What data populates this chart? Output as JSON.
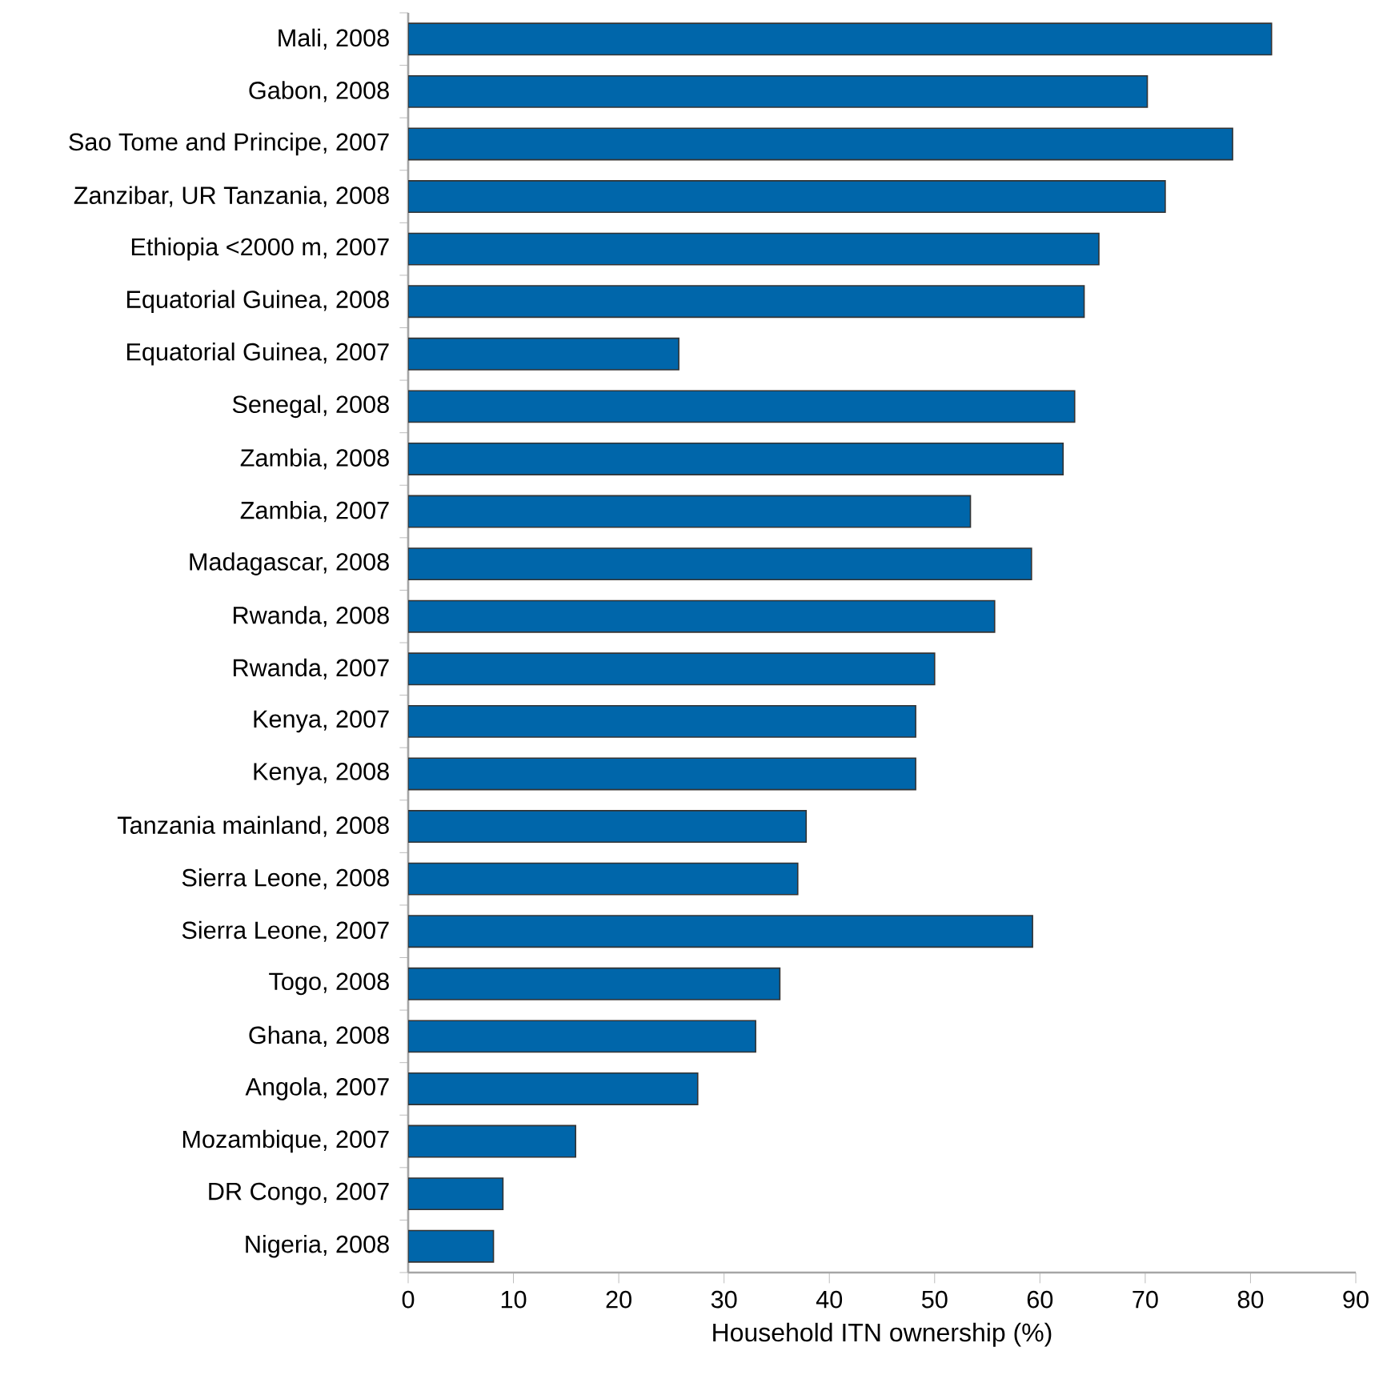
{
  "chart_data": {
    "type": "bar",
    "orientation": "horizontal",
    "xlabel": "Household ITN ownership (%)",
    "categories": [
      "Mali, 2008",
      "Gabon, 2008",
      "Sao Tome and Principe, 2007",
      "Zanzibar, UR Tanzania, 2008",
      "Ethiopia <2000 m, 2007",
      "Equatorial Guinea, 2008",
      "Equatorial Guinea, 2007",
      "Senegal, 2008",
      "Zambia, 2008",
      "Zambia, 2007",
      "Madagascar, 2008",
      "Rwanda, 2008",
      "Rwanda, 2007",
      "Kenya, 2007",
      "Kenya, 2008",
      "Tanzania mainland, 2008",
      "Sierra Leone, 2008",
      "Sierra Leone, 2007",
      "Togo, 2008",
      "Ghana, 2008",
      "Angola, 2007",
      "Mozambique, 2007",
      "DR Congo, 2007",
      "Nigeria, 2008"
    ],
    "values": [
      82.0,
      70.2,
      78.3,
      71.9,
      65.6,
      64.2,
      25.7,
      63.3,
      62.2,
      53.4,
      59.2,
      55.7,
      50.0,
      48.2,
      48.2,
      37.8,
      37.0,
      59.3,
      35.3,
      33.0,
      27.5,
      15.9,
      9.0,
      8.1
    ],
    "color": "#0066aa",
    "xlim": [
      0,
      90
    ],
    "xticks": [
      0,
      10,
      20,
      30,
      40,
      50,
      60,
      70,
      80,
      90
    ],
    "grid": false
  }
}
